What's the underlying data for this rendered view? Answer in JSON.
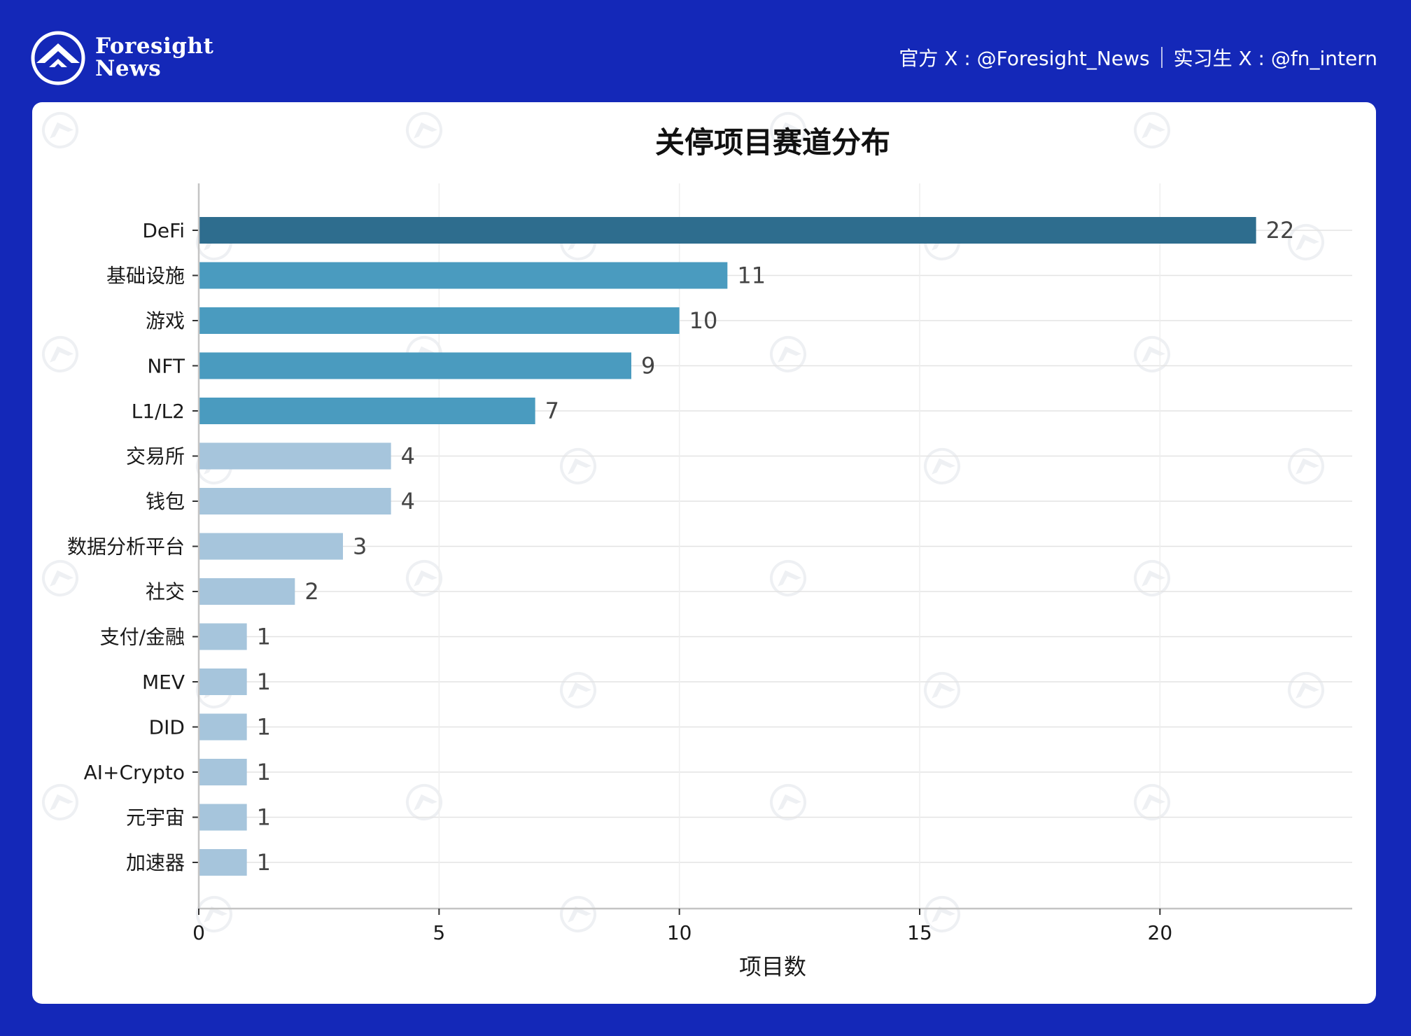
{
  "header": {
    "brand_line1": "Foresight",
    "brand_line2": "News",
    "official_label": "官方 X : @Foresight_News",
    "intern_label": "实习生 X : @fn_intern",
    "logo_icon": "foresight-mountain-icon"
  },
  "colors": {
    "background": "#1428b8",
    "bar_top": "#2e6d8e",
    "bar_mid": "#4a9bbf",
    "bar_light": "#a6c5dc"
  },
  "chart_data": {
    "type": "bar",
    "orientation": "horizontal",
    "title": "关停项目赛道分布",
    "xlabel": "项目数",
    "ylabel": "",
    "xlim": [
      0,
      24
    ],
    "xticks": [
      0,
      5,
      10,
      15,
      20
    ],
    "grid": true,
    "categories": [
      "DeFi",
      "基础设施",
      "游戏",
      "NFT",
      "L1/L2",
      "交易所",
      "钱包",
      "数据分析平台",
      "社交",
      "支付/金融",
      "MEV",
      "DID",
      "AI+Crypto",
      "元宇宙",
      "加速器"
    ],
    "values": [
      22,
      11,
      10,
      9,
      7,
      4,
      4,
      3,
      2,
      1,
      1,
      1,
      1,
      1,
      1
    ]
  }
}
